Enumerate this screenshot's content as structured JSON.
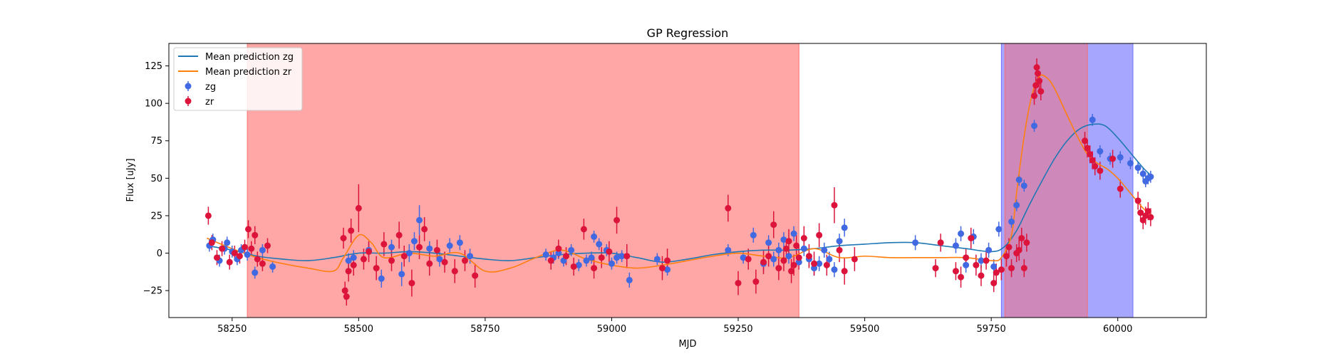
{
  "chart_data": {
    "type": "scatter",
    "title": "GP Regression",
    "xlabel": "MJD",
    "ylabel": "Flux [uJy]",
    "xlim": [
      58125,
      60175
    ],
    "ylim": [
      -43,
      140
    ],
    "xticks": [
      58250,
      58500,
      58750,
      59000,
      59250,
      59500,
      59750,
      60000
    ],
    "yticks": [
      -25,
      0,
      25,
      50,
      75,
      100,
      125
    ],
    "grid": false,
    "legend": {
      "placement": "top-left",
      "entries": [
        {
          "label": "Mean prediction zg",
          "kind": "line",
          "color": "#1f77b4"
        },
        {
          "label": "Mean prediction zr",
          "kind": "line",
          "color": "#ff7f0e"
        },
        {
          "label": "zg",
          "kind": "marker",
          "color": "#4169e1"
        },
        {
          "label": "zr",
          "kind": "marker",
          "color": "#dc143c"
        }
      ]
    },
    "shaded_regions": [
      {
        "x0": 58280,
        "x1": 59370,
        "color": "#ff6666",
        "opacity": 0.58
      },
      {
        "x0": 59770,
        "x1": 60030,
        "color": "#6666ff",
        "opacity": 0.58
      },
      {
        "x0": 59777,
        "x1": 59940,
        "color": "#ff6666",
        "opacity": 0.45
      }
    ],
    "mean_lines": [
      {
        "name": "Mean prediction zg",
        "color": "#1f77b4",
        "x": [
          58200,
          58250,
          58300,
          58350,
          58400,
          58450,
          58500,
          58550,
          58600,
          58650,
          58700,
          58750,
          58800,
          58850,
          58900,
          58950,
          59000,
          59050,
          59100,
          59150,
          59200,
          59250,
          59300,
          59350,
          59400,
          59450,
          59500,
          59550,
          59600,
          59650,
          59700,
          59750,
          59775,
          59800,
          59825,
          59850,
          59875,
          59900,
          59925,
          59950,
          59975,
          60000,
          60025,
          60050,
          60065
        ],
        "y": [
          5,
          2,
          -2,
          -4,
          -5,
          -3,
          0,
          0,
          1,
          0,
          -2,
          -4,
          -5,
          -3,
          -1,
          0,
          0,
          -3,
          -6,
          -4,
          -1,
          1,
          2,
          2,
          3,
          5,
          6,
          7,
          7,
          5,
          3,
          1,
          4,
          15,
          32,
          48,
          63,
          75,
          83,
          86,
          85,
          77,
          67,
          57,
          52
        ]
      },
      {
        "name": "Mean prediction zr",
        "color": "#ff7f0e",
        "x": [
          58200,
          58250,
          58300,
          58350,
          58400,
          58450,
          58470,
          58500,
          58525,
          58550,
          58600,
          58650,
          58700,
          58750,
          58800,
          58850,
          58900,
          58950,
          59000,
          59050,
          59100,
          59150,
          59200,
          59250,
          59300,
          59350,
          59400,
          59450,
          59500,
          59550,
          59600,
          59650,
          59700,
          59750,
          59770,
          59790,
          59800,
          59815,
          59830,
          59845,
          59860,
          59875,
          59900,
          59920,
          59940,
          59960,
          59980,
          60000,
          60030,
          60050,
          60065
        ],
        "y": [
          10,
          3,
          -3,
          -7,
          -10,
          -12,
          -3,
          12,
          7,
          -3,
          0,
          -2,
          0,
          -12,
          -10,
          -3,
          2,
          -4,
          -8,
          -10,
          -8,
          -5,
          -2,
          0,
          -2,
          -3,
          3,
          -3,
          -2,
          -3,
          -3,
          -3,
          -3,
          -5,
          -3,
          12,
          40,
          78,
          105,
          118,
          117,
          110,
          92,
          78,
          66,
          60,
          56,
          50,
          38,
          30,
          26
        ]
      }
    ],
    "series": [
      {
        "name": "zg",
        "color": "#4169e1",
        "x": [
          58205,
          58212,
          58225,
          58235,
          58240,
          58250,
          58260,
          58268,
          58280,
          58295,
          58310,
          58330,
          58480,
          58490,
          58520,
          58545,
          58565,
          58585,
          58600,
          58610,
          58620,
          58640,
          58660,
          58680,
          58700,
          58720,
          58870,
          58885,
          58895,
          58905,
          58920,
          58935,
          58950,
          58960,
          58965,
          58975,
          58990,
          59000,
          59010,
          59020,
          59035,
          59090,
          59110,
          59230,
          59260,
          59280,
          59300,
          59310,
          59320,
          59330,
          59340,
          59350,
          59360,
          59370,
          59380,
          59390,
          59400,
          59410,
          59420,
          59430,
          59440,
          59450,
          59460,
          59600,
          59680,
          59690,
          59700,
          59715,
          59730,
          59745,
          59755,
          59765,
          59790,
          59800,
          59805,
          59815,
          59835,
          59950,
          59965,
          59985,
          60005,
          60025,
          60040,
          60050,
          60055,
          60060,
          60065
        ],
        "y": [
          5,
          9,
          -5,
          3,
          7,
          1,
          -4,
          2,
          -1,
          -13,
          2,
          -9,
          -5,
          -3,
          2,
          -17,
          4,
          -14,
          0,
          8,
          22,
          3,
          -4,
          5,
          7,
          -2,
          -1,
          -3,
          0,
          -5,
          2,
          -8,
          -5,
          -3,
          11,
          6,
          2,
          -7,
          -3,
          -2,
          -18,
          -4,
          -11,
          2,
          -3,
          12,
          -7,
          7,
          -4,
          2,
          9,
          -2,
          13,
          -6,
          3,
          -4,
          -10,
          -7,
          2,
          -4,
          -11,
          8,
          17,
          7,
          5,
          13,
          -8,
          11,
          -5,
          2,
          -9,
          16,
          21,
          32,
          49,
          45,
          85,
          89,
          68,
          63,
          64,
          60,
          57,
          53,
          48,
          50,
          51
        ],
        "err": [
          4,
          4,
          4,
          4,
          4,
          4,
          4,
          4,
          4,
          4,
          4,
          4,
          5,
          5,
          5,
          6,
          5,
          8,
          6,
          6,
          10,
          5,
          5,
          5,
          5,
          5,
          4,
          4,
          4,
          4,
          4,
          4,
          4,
          4,
          4,
          4,
          4,
          4,
          4,
          4,
          5,
          4,
          4,
          4,
          4,
          5,
          5,
          5,
          5,
          5,
          5,
          5,
          5,
          5,
          5,
          5,
          5,
          5,
          5,
          5,
          5,
          5,
          6,
          5,
          5,
          5,
          5,
          5,
          5,
          5,
          5,
          5,
          4,
          4,
          4,
          4,
          4,
          4,
          4,
          4,
          4,
          4,
          4,
          4,
          4,
          4,
          4
        ]
      },
      {
        "name": "zr",
        "color": "#dc143c",
        "x": [
          58203,
          58210,
          58220,
          58230,
          58245,
          58255,
          58265,
          58275,
          58282,
          58288,
          58295,
          58300,
          58310,
          58320,
          58470,
          58473,
          58476,
          58480,
          58485,
          58490,
          58500,
          58510,
          58520,
          58535,
          58550,
          58565,
          58580,
          58590,
          58605,
          58620,
          58630,
          58640,
          58655,
          58670,
          58690,
          58710,
          58730,
          58880,
          58895,
          58910,
          58925,
          58945,
          58965,
          58980,
          58995,
          59010,
          59030,
          59100,
          59110,
          59230,
          59250,
          59270,
          59285,
          59300,
          59310,
          59320,
          59330,
          59340,
          59345,
          59350,
          59355,
          59360,
          59365,
          59370,
          59380,
          59390,
          59400,
          59410,
          59425,
          59440,
          59450,
          59460,
          59480,
          59640,
          59650,
          59680,
          59690,
          59700,
          59710,
          59720,
          59730,
          59740,
          59755,
          59760,
          59770,
          59780,
          59785,
          59790,
          59800,
          59805,
          59810,
          59815,
          59820,
          59835,
          59838,
          59840,
          59842,
          59845,
          59848,
          59935,
          59940,
          59945,
          59950,
          59955,
          59965,
          59990,
          60005,
          60040,
          60045,
          60050,
          60055,
          60060,
          60065
        ],
        "y": [
          25,
          7,
          -3,
          3,
          -6,
          0,
          -2,
          4,
          16,
          3,
          12,
          -4,
          -7,
          5,
          10,
          -25,
          -29,
          -12,
          15,
          -8,
          30,
          -4,
          1,
          -10,
          6,
          -5,
          12,
          -2,
          -20,
          4,
          16,
          -7,
          2,
          -6,
          -12,
          -5,
          -15,
          -5,
          3,
          -2,
          -9,
          16,
          -10,
          -3,
          1,
          22,
          -2,
          -10,
          -5,
          30,
          -20,
          -4,
          -19,
          -6,
          -2,
          19,
          -10,
          -5,
          3,
          8,
          -12,
          -8,
          5,
          -3,
          10,
          -2,
          -7,
          12,
          -8,
          32,
          2,
          -12,
          -4,
          -10,
          7,
          -12,
          -16,
          -3,
          10,
          -8,
          -15,
          -5,
          -20,
          -13,
          -11,
          -2,
          4,
          -10,
          0,
          2,
          10,
          -10,
          7,
          105,
          112,
          124,
          120,
          115,
          108,
          75,
          70,
          66,
          62,
          58,
          55,
          63,
          43,
          35,
          27,
          22,
          25,
          28,
          24
        ],
        "err": [
          6,
          5,
          5,
          5,
          5,
          5,
          5,
          5,
          6,
          5,
          6,
          5,
          5,
          5,
          7,
          6,
          6,
          7,
          8,
          7,
          16,
          7,
          7,
          8,
          8,
          7,
          9,
          7,
          9,
          8,
          8,
          8,
          7,
          7,
          8,
          7,
          8,
          6,
          6,
          6,
          6,
          7,
          7,
          7,
          7,
          9,
          8,
          8,
          8,
          9,
          8,
          7,
          8,
          8,
          7,
          9,
          8,
          7,
          7,
          8,
          8,
          7,
          7,
          8,
          8,
          8,
          8,
          8,
          7,
          12,
          8,
          9,
          8,
          6,
          6,
          6,
          7,
          6,
          7,
          7,
          7,
          6,
          6,
          6,
          7,
          7,
          6,
          6,
          6,
          7,
          7,
          6,
          6,
          6,
          6,
          6,
          6,
          6,
          6,
          6,
          6,
          6,
          6,
          6,
          6,
          6,
          6,
          6,
          6,
          6,
          6,
          6,
          6
        ]
      }
    ]
  }
}
